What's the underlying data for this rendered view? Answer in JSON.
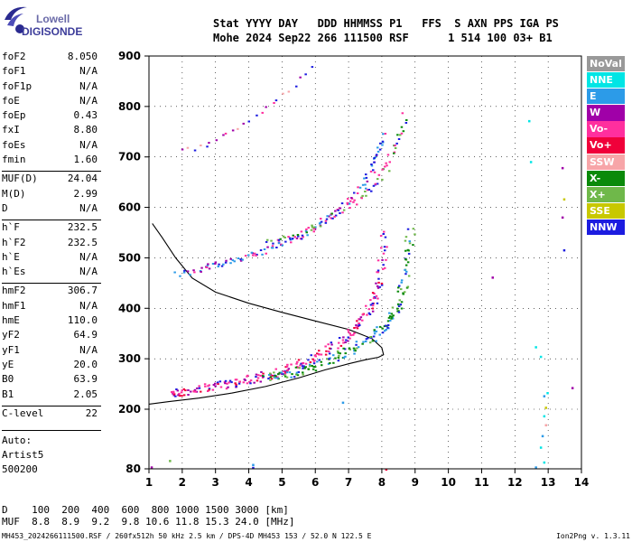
{
  "logo": {
    "line1": "Lowell",
    "line2": "DIGISONDE"
  },
  "header": {
    "labels": "Stat YYYY DAY   DDD HHMMSS P1   FFS  S AXN PPS IGA PS",
    "values": "Mohe 2024 Sep22 266 111500 RSF      1 514 100 03+ B1"
  },
  "params": [
    {
      "label": "foF2",
      "value": "8.050"
    },
    {
      "label": "foF1",
      "value": "N/A"
    },
    {
      "label": "foF1p",
      "value": "N/A"
    },
    {
      "label": "foE",
      "value": "N/A"
    },
    {
      "label": "foEp",
      "value": "0.43"
    },
    {
      "label": "fxI",
      "value": "8.80"
    },
    {
      "label": "foEs",
      "value": "N/A"
    },
    {
      "label": "fmin",
      "value": "1.60"
    },
    {
      "label": "MUF(D)",
      "value": "24.04"
    },
    {
      "label": "M(D)",
      "value": "2.99"
    },
    {
      "label": "D",
      "value": "N/A"
    },
    {
      "label": "h`F",
      "value": "232.5"
    },
    {
      "label": "h`F2",
      "value": "232.5"
    },
    {
      "label": "h`E",
      "value": "N/A"
    },
    {
      "label": "h`Es",
      "value": "N/A"
    },
    {
      "label": "hmF2",
      "value": "306.7"
    },
    {
      "label": "hmF1",
      "value": "N/A"
    },
    {
      "label": "hmE",
      "value": "110.0"
    },
    {
      "label": "yF2",
      "value": "64.9"
    },
    {
      "label": "yF1",
      "value": "N/A"
    },
    {
      "label": "yE",
      "value": "20.0"
    },
    {
      "label": "B0",
      "value": "63.9"
    },
    {
      "label": "B1",
      "value": "2.05"
    },
    {
      "label": "C-level",
      "value": "22"
    }
  ],
  "auto": {
    "line1": "Auto:",
    "line2": "Artist5",
    "line3": "500200"
  },
  "legend": [
    {
      "label": "NoVal",
      "color": "#999999"
    },
    {
      "label": "NNE",
      "color": "#00e5e5"
    },
    {
      "label": "E",
      "color": "#2c9be8"
    },
    {
      "label": "W",
      "color": "#a000a8"
    },
    {
      "label": "Vo-",
      "color": "#ff2f9e"
    },
    {
      "label": "Vo+",
      "color": "#f0003a"
    },
    {
      "label": "SSW",
      "color": "#f7a5a8"
    },
    {
      "label": "X-",
      "color": "#0a8a0a"
    },
    {
      "label": "X+",
      "color": "#6fb84a"
    },
    {
      "label": "SSE",
      "color": "#c8c800"
    },
    {
      "label": "NNW",
      "color": "#1c1ce0"
    }
  ],
  "muf_table": {
    "line1": "D    100  200  400  600  800 1000 1500 3000 [km]",
    "line2": "MUF  8.8  8.9  9.2  9.8 10.6 11.8 15.3 24.0 [MHz]"
  },
  "footer": {
    "left": "MH453_2024266111500.RSF / 260fx512h 50 kHz 2.5 km / DPS-4D MH453 153 / 52.0 N 122.5 E",
    "right": "Ion2Png v. 1.3.11"
  },
  "chart_data": {
    "type": "scatter",
    "title": "",
    "xlabel": "",
    "ylabel": "",
    "xlim": [
      1,
      14
    ],
    "ylim": [
      80,
      900
    ],
    "xticks": [
      1,
      2,
      3,
      4,
      5,
      6,
      7,
      8,
      9,
      10,
      11,
      12,
      13,
      14
    ],
    "yticks": [
      80,
      200,
      300,
      400,
      500,
      600,
      700,
      800,
      900
    ],
    "profile_curve": {
      "x": [
        1.0,
        1.6,
        2.5,
        3.5,
        4.5,
        5.5,
        6.3,
        7.0,
        7.5,
        7.9,
        8.05,
        8.0,
        7.7,
        7.0,
        6.0,
        5.0,
        4.0,
        3.0,
        2.3,
        1.8,
        1.4,
        1.1
      ],
      "y": [
        210,
        215,
        222,
        232,
        245,
        262,
        278,
        290,
        298,
        303,
        308,
        322,
        340,
        358,
        375,
        392,
        410,
        432,
        460,
        500,
        540,
        568
      ]
    },
    "o_trace": {
      "x": [
        1.6,
        2.0,
        2.5,
        3.0,
        3.5,
        4.0,
        4.5,
        5.0,
        5.5,
        6.0,
        6.5,
        7.0,
        7.3,
        7.6,
        7.8,
        7.95,
        8.05
      ],
      "y": [
        233,
        236,
        242,
        248,
        254,
        260,
        268,
        278,
        290,
        305,
        325,
        350,
        372,
        400,
        430,
        480,
        560
      ]
    },
    "x_trace": {
      "x": [
        4.5,
        5.0,
        5.5,
        6.0,
        6.5,
        7.0,
        7.5,
        7.9,
        8.2,
        8.4,
        8.6,
        8.75,
        8.85
      ],
      "y": [
        262,
        270,
        278,
        288,
        300,
        316,
        335,
        355,
        375,
        400,
        440,
        500,
        560
      ]
    },
    "o_multi": {
      "x": [
        1.8,
        2.5,
        3.0,
        3.5,
        4.0,
        4.5,
        5.0,
        5.5,
        6.0,
        6.5,
        7.0,
        7.4,
        7.7,
        7.9,
        8.0
      ],
      "y": [
        470,
        478,
        488,
        496,
        505,
        518,
        530,
        545,
        565,
        585,
        615,
        645,
        680,
        715,
        750
      ]
    },
    "x_multi": {
      "x": [
        4.5,
        5.0,
        5.5,
        6.0,
        6.5,
        7.0,
        7.5,
        7.8,
        8.1,
        8.3,
        8.5,
        8.7
      ],
      "y": [
        530,
        540,
        550,
        565,
        585,
        605,
        630,
        650,
        680,
        710,
        745,
        790
      ]
    },
    "o_third": {
      "x": [
        2.0,
        2.5,
        3.0,
        3.5,
        4.0,
        4.5,
        5.0,
        5.5,
        6.0
      ],
      "y": [
        712,
        722,
        735,
        752,
        775,
        800,
        825,
        855,
        890
      ]
    },
    "scatter_points": [
      {
        "x": 12.4,
        "y": 773,
        "c": "#00e5e5"
      },
      {
        "x": 12.45,
        "y": 692,
        "c": "#00e5e5"
      },
      {
        "x": 13.4,
        "y": 680,
        "c": "#a000a8"
      },
      {
        "x": 13.45,
        "y": 618,
        "c": "#c8c800"
      },
      {
        "x": 13.4,
        "y": 582,
        "c": "#a000a8"
      },
      {
        "x": 13.45,
        "y": 517,
        "c": "#1c1ce0"
      },
      {
        "x": 11.3,
        "y": 463,
        "c": "#a000a8"
      },
      {
        "x": 13.7,
        "y": 244,
        "c": "#a000a8"
      },
      {
        "x": 12.6,
        "y": 325,
        "c": "#00e5e5"
      },
      {
        "x": 12.75,
        "y": 306,
        "c": "#00e5e5"
      },
      {
        "x": 12.95,
        "y": 234,
        "c": "#00e5e5"
      },
      {
        "x": 12.85,
        "y": 228,
        "c": "#2c9be8"
      },
      {
        "x": 12.9,
        "y": 205,
        "c": "#c8c800"
      },
      {
        "x": 12.85,
        "y": 188,
        "c": "#00e5e5"
      },
      {
        "x": 12.9,
        "y": 170,
        "c": "#f7a5a8"
      },
      {
        "x": 12.8,
        "y": 148,
        "c": "#2c9be8"
      },
      {
        "x": 12.75,
        "y": 125,
        "c": "#00e5e5"
      },
      {
        "x": 12.85,
        "y": 95,
        "c": "#00e5e5"
      },
      {
        "x": 12.6,
        "y": 85,
        "c": "#2c9be8"
      },
      {
        "x": 4.1,
        "y": 90,
        "c": "#2c9be8"
      },
      {
        "x": 4.1,
        "y": 84,
        "c": "#1c1ce0"
      },
      {
        "x": 1.6,
        "y": 98,
        "c": "#6fb84a"
      },
      {
        "x": 1.05,
        "y": 85,
        "c": "#a000a8"
      },
      {
        "x": 6.8,
        "y": 215,
        "c": "#2c9be8"
      },
      {
        "x": 8.1,
        "y": 81,
        "c": "#f0003a"
      }
    ]
  }
}
